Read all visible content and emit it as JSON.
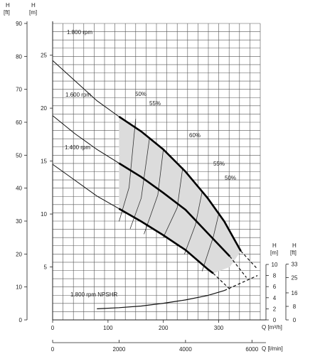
{
  "chart_data": {
    "type": "line",
    "axes": {
      "h_ft_label_top": "H",
      "h_ft_unit": "[ft]",
      "h_m_label_top": "H",
      "h_m_unit": "[m]",
      "h_ft_ticks": [
        0,
        10,
        20,
        30,
        40,
        50,
        60,
        70,
        80,
        90
      ],
      "h_m_ticks": [
        5,
        10,
        15,
        20,
        25
      ],
      "q_m3h_label": "Q [m³/h]",
      "q_m3h_ticks": [
        0,
        100,
        200,
        300
      ],
      "q_lmin_label": "Q [l/min]",
      "q_lmin_ticks": [
        0,
        2000,
        4000,
        6000
      ],
      "npshr_m_label_top": "H",
      "npshr_m_unit": "[m]",
      "npshr_ft_label_top": "H",
      "npshr_ft_unit": "[ft]",
      "npshr_m_ticks": [
        0,
        2,
        4,
        6,
        8,
        10
      ],
      "npshr_ft_ticks": [
        0,
        8,
        16,
        25,
        33
      ],
      "q_range": [
        0,
        360
      ],
      "h_range_m": [
        0,
        28
      ],
      "npshr_range_m": [
        0,
        10
      ]
    },
    "series": [
      {
        "name": "1.800 rpm",
        "x": [
          0,
          40,
          80,
          120,
          160,
          200,
          240,
          280,
          310,
          340
        ],
        "y": [
          24.5,
          22.6,
          20.7,
          19.2,
          17.8,
          16.1,
          14.0,
          11.5,
          9.3,
          6.5
        ],
        "dashed_x": [
          340,
          370
        ],
        "dashed_y": [
          6.5,
          4.8
        ]
      },
      {
        "name": "1.600 rpm",
        "x": [
          0,
          40,
          80,
          120,
          160,
          200,
          240,
          280,
          320
        ],
        "y": [
          19.3,
          17.6,
          16.1,
          14.8,
          13.5,
          12.0,
          10.4,
          8.2,
          6.0
        ],
        "dashed_x": [
          320,
          350
        ],
        "dashed_y": [
          6.0,
          4.0
        ]
      },
      {
        "name": "1.400 rpm",
        "x": [
          0,
          40,
          80,
          120,
          160,
          200,
          240,
          280,
          290
        ],
        "y": [
          14.7,
          13.2,
          11.7,
          10.5,
          9.3,
          8.0,
          6.6,
          4.8,
          4.4
        ],
        "dashed_x": [
          290,
          320
        ],
        "dashed_y": [
          4.4,
          2.9
        ]
      }
    ],
    "npshr": {
      "name": "1.800 rpm NPSHR",
      "x": [
        80,
        120,
        160,
        200,
        240,
        280,
        310
      ],
      "y": [
        2.0,
        2.2,
        2.5,
        3.0,
        3.6,
        4.4,
        5.3
      ],
      "dashed_x": [
        310,
        370
      ],
      "dashed_y": [
        5.3,
        8.0
      ]
    },
    "efficiency_labels": [
      "50%",
      "55%",
      "60%",
      "55%",
      "50%"
    ],
    "grid": true
  }
}
